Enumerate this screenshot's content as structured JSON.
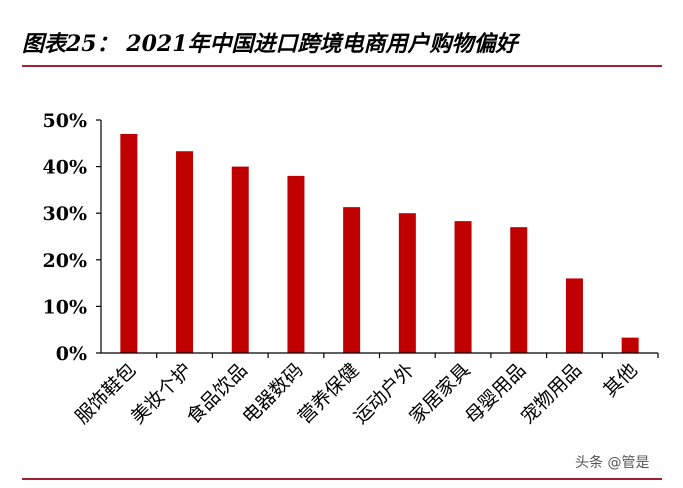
{
  "title": "图表25： 2021年中国进口跨境电商用户购物偏好",
  "watermark": "头条 @管是",
  "colors": {
    "bar": "#c00000",
    "rule": "#a31f34"
  },
  "chart_data": {
    "type": "bar",
    "categories": [
      "服饰鞋包",
      "美妆个护",
      "食品饮品",
      "电器数码",
      "营养保健",
      "运动户外",
      "家居家具",
      "母婴用品",
      "宠物用品",
      "其他"
    ],
    "values": [
      47,
      43.3,
      40,
      38,
      31.3,
      30,
      28.3,
      27,
      16,
      3.3
    ],
    "value_unit": "%",
    "ylim": [
      0,
      50
    ],
    "yticks": [
      "0%",
      "10%",
      "20%",
      "30%",
      "40%",
      "50%"
    ],
    "xlabel": "",
    "ylabel": "",
    "grid": false,
    "legend": "none"
  }
}
